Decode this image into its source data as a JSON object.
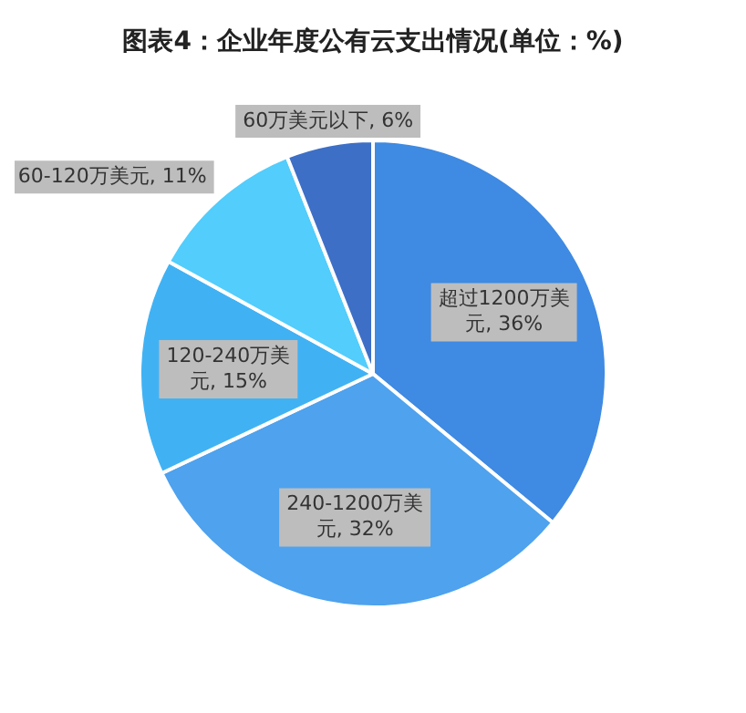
{
  "chart_data": {
    "type": "pie",
    "title": "图表4：企业年度公有云支出情况(单位：%)",
    "categories": [
      "超过1200万美元",
      "240-1200万美元",
      "120-240万美元",
      "60-120万美元",
      "60万美元以下"
    ],
    "values": [
      36,
      32,
      15,
      11,
      6
    ],
    "value_labels": [
      "36%",
      "32%",
      "15%",
      "11%",
      "6%"
    ],
    "colors": [
      "#3f8ae2",
      "#4ea2ee",
      "#40b2f4",
      "#52cdfc",
      "#3d6fc6"
    ],
    "legend": false
  }
}
